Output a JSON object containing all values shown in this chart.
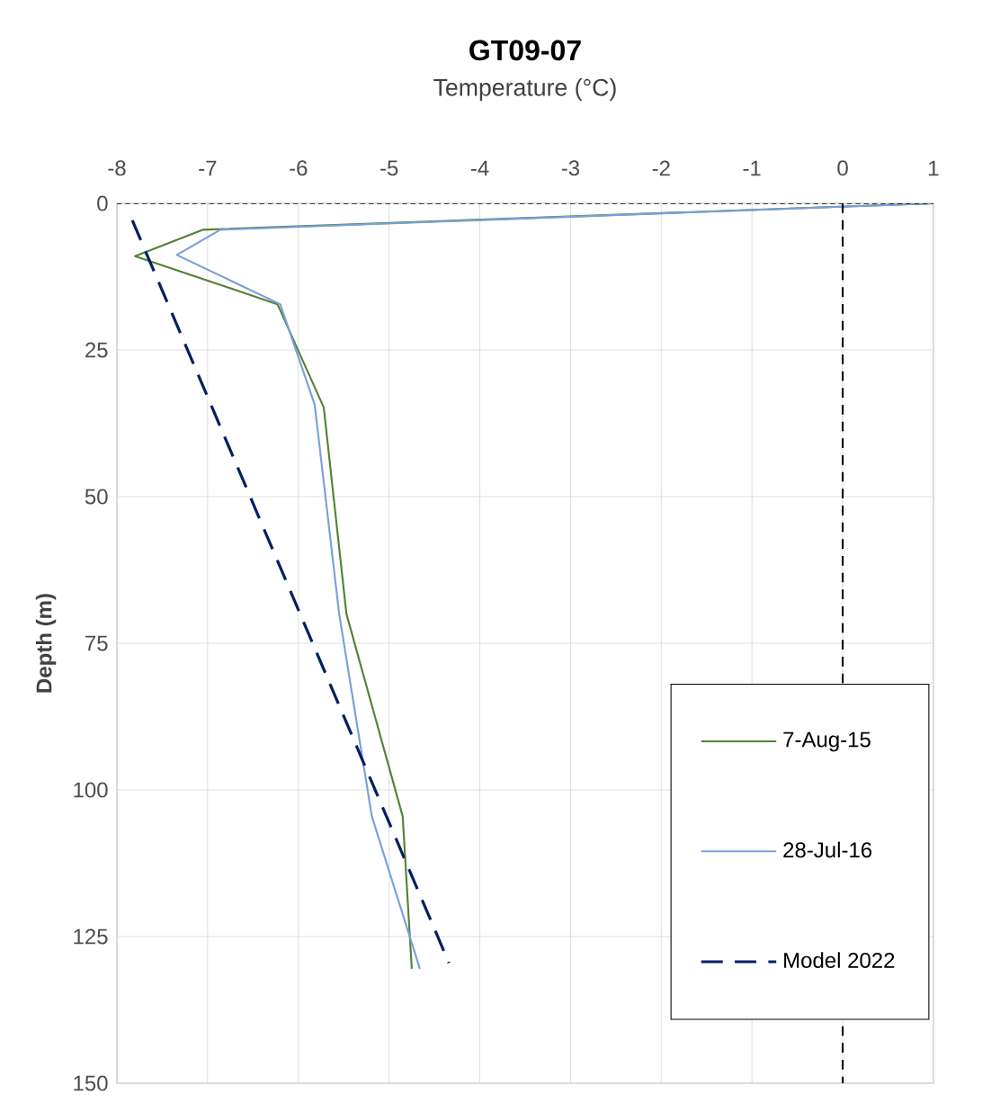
{
  "chart_data": {
    "type": "line",
    "title": "GT09-07",
    "xlabel": "Temperature (°C)",
    "ylabel": "Depth (m)",
    "xlim": [
      -8,
      1
    ],
    "xticks": [
      -8,
      -7,
      -6,
      -5,
      -4,
      -3,
      -2,
      -1,
      0,
      1
    ],
    "ylim": [
      150,
      0
    ],
    "yticks": [
      0,
      25,
      50,
      75,
      100,
      125,
      150
    ],
    "grid": true,
    "legend": "bottom right",
    "ref_lines": [
      {
        "axis": "x",
        "value": 0,
        "color": "#000000",
        "line_style": "dashed"
      },
      {
        "axis": "y",
        "value": 0,
        "color": "#000000",
        "line_style": "dotted"
      }
    ],
    "series": [
      {
        "name": "7-Aug-15",
        "color": "#548235",
        "line_style": "solid",
        "x": [
          1,
          -7.05,
          -7.8,
          -6.23,
          -5.72,
          -5.47,
          -4.85,
          -4.75
        ],
        "values": [
          0,
          4.5,
          9,
          17.2,
          34.8,
          70,
          104.5,
          130.5
        ]
      },
      {
        "name": "28-Jul-16",
        "color": "#7a9fdc",
        "line_style": "solid",
        "x": [
          1,
          -6.86,
          -7.34,
          -6.2,
          -5.82,
          -5.55,
          -5.19,
          -4.66
        ],
        "values": [
          0,
          4.5,
          8.8,
          17.2,
          34.3,
          70,
          104.5,
          130.5
        ]
      },
      {
        "name": "Model 2022",
        "color": "#002060",
        "line_style": "dashed",
        "x": [
          -7.83,
          -4.34
        ],
        "values": [
          2.9,
          129.5
        ]
      }
    ]
  }
}
